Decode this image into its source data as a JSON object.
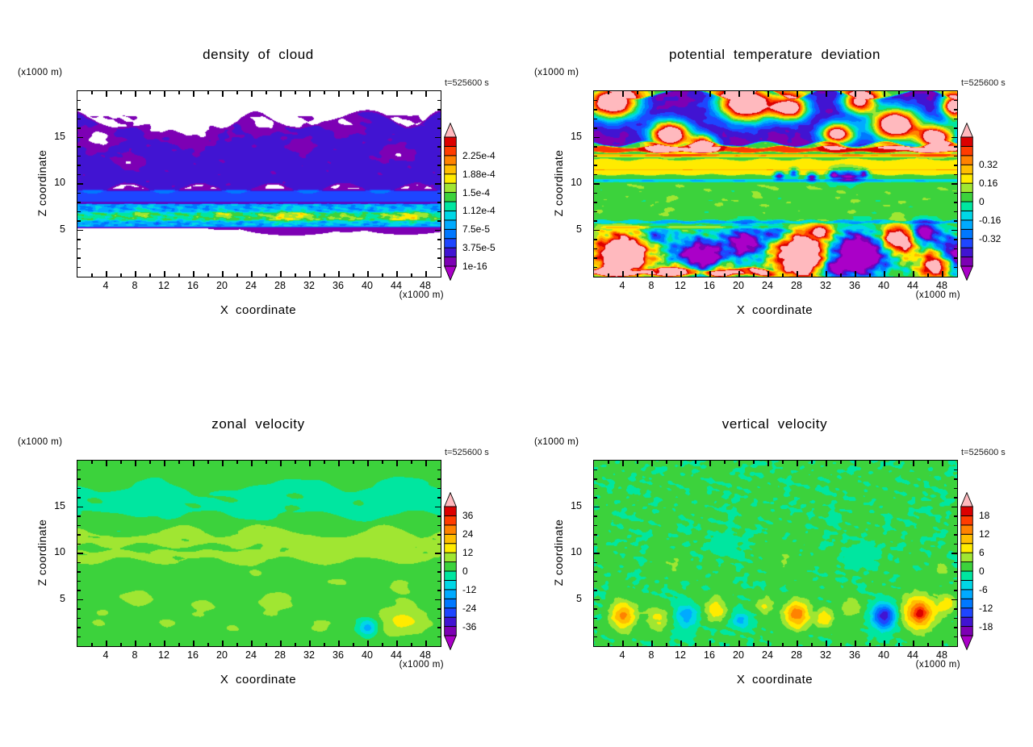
{
  "page": {
    "background": "#ffffff"
  },
  "palette": {
    "colors": [
      "#7d00b4",
      "#4114d2",
      "#1e46ff",
      "#0078ff",
      "#00aaff",
      "#00d7e6",
      "#00e6a0",
      "#3cd23c",
      "#a0e632",
      "#ffeb00",
      "#ffbe00",
      "#ff8200",
      "#ff3c00",
      "#dc0000"
    ],
    "under": "#aa00c8",
    "over": "#ffb9be"
  },
  "chart_data": [
    {
      "type": "filled-contour",
      "title": "density of cloud",
      "time_label": "t=525600 s",
      "x_axis": {
        "label": "X coordinate",
        "unit": "(x1000 m)",
        "range": [
          0,
          50
        ],
        "major_ticks": [
          4,
          8,
          12,
          16,
          20,
          24,
          28,
          32,
          36,
          40,
          44,
          48
        ],
        "minor_step": 2
      },
      "y_axis": {
        "label": "Z coordinate",
        "unit": "(x1000 m)",
        "range": [
          0,
          20
        ],
        "major_ticks": [
          5,
          10,
          15
        ],
        "minor_step": 1
      },
      "colorbar": {
        "tick_labels": [
          "2.25e-4",
          "1.88e-4",
          "1.5e-4",
          "1.12e-4",
          "7.5e-5",
          "3.75e-5",
          "1e-16"
        ],
        "fracs": [
          0.857,
          0.714,
          0.571,
          0.429,
          0.286,
          0.143,
          0.0
        ],
        "levels": [
          1e-16,
          1.875e-05,
          3.75e-05,
          5.625e-05,
          7.5e-05,
          9.375e-05,
          0.0001125,
          0.00013125,
          0.00015,
          0.00016875,
          0.0001875,
          0.00020625,
          0.000225,
          0.00024375,
          0.0002625
        ],
        "under": "none"
      },
      "field": {
        "base": 0,
        "bands": [
          {
            "z0": 9.35,
            "z1": 17.1,
            "v": 2.5e-05,
            "soft": 0.35,
            "wob": 0.9,
            "wf": 0.5,
            "ph": 1.3
          },
          {
            "z0": 7.9,
            "z1": 9.45,
            "v": 4.8e-05,
            "soft": 0.3
          },
          {
            "z0": 5.25,
            "z1": 7.95,
            "v": 8.2e-05,
            "soft": 0.18
          },
          {
            "z0": 5.9,
            "z1": 7.1,
            "v": 4.2e-05,
            "soft": 0.3
          }
        ],
        "blobs": [
          [
            29.5,
            6.5,
            2.6,
            0.55,
            5.2e-05
          ],
          [
            45.2,
            6.4,
            2.3,
            0.5,
            5.2e-05
          ],
          [
            20.5,
            6.7,
            1.6,
            0.45,
            3.6e-05
          ],
          [
            9,
            6.9,
            1.3,
            0.4,
            3.2e-05
          ],
          [
            37,
            6.3,
            1.4,
            0.4,
            3e-05
          ],
          [
            16,
            16.9,
            2.6,
            1.6,
            -4.2e-05
          ],
          [
            3,
            14.9,
            1.6,
            0.9,
            -3.2e-05
          ],
          [
            25.5,
            16.7,
            2.1,
            0.9,
            -3e-05
          ],
          [
            7.5,
            12.4,
            1.3,
            0.5,
            -2.6e-05
          ],
          [
            36.5,
            16.6,
            1.6,
            0.8,
            -2.8e-05
          ],
          [
            44,
            13.3,
            1.5,
            0.6,
            -2.6e-05
          ],
          [
            31,
            14.1,
            1.2,
            0.5,
            -2.4e-05
          ],
          [
            11,
            16.4,
            1.5,
            0.8,
            -3e-05
          ]
        ],
        "noise": [
          {
            "amp": 8e-06,
            "sx": 1.3,
            "sz": 0.8,
            "z0": 9.4,
            "z1": 17.4,
            "seed": 3
          },
          {
            "amp": 3e-05,
            "sx": 1.0,
            "sz": 0.38,
            "z0": 5.3,
            "z1": 8.0,
            "seed": 7
          }
        ]
      }
    },
    {
      "type": "filled-contour",
      "title": "potential temperature deviation",
      "time_label": "t=525600 s",
      "x_axis": {
        "label": "X coordinate",
        "unit": "(x1000 m)",
        "range": [
          0,
          50
        ],
        "major_ticks": [
          4,
          8,
          12,
          16,
          20,
          24,
          28,
          32,
          36,
          40,
          44,
          48
        ],
        "minor_step": 2
      },
      "y_axis": {
        "label": "Z coordinate",
        "unit": "(x1000 m)",
        "range": [
          0,
          20
        ],
        "major_ticks": [
          5,
          10,
          15
        ],
        "minor_step": 1
      },
      "colorbar": {
        "tick_labels": [
          "0.32",
          "0.16",
          "0",
          "-0.16",
          "-0.32"
        ],
        "fracs": [
          0.786,
          0.643,
          0.5,
          0.357,
          0.214
        ],
        "levels": [
          -0.56,
          -0.48,
          -0.4,
          -0.32,
          -0.24,
          -0.16,
          -0.08,
          0,
          0.08,
          0.16,
          0.24,
          0.32,
          0.4,
          0.48,
          0.56
        ]
      },
      "field": {
        "base": 0.03,
        "bands": [
          {
            "z0": 14.15,
            "z1": 19.8,
            "v": -0.53,
            "soft": 0.25,
            "wob": 0.5,
            "wf": 0.6,
            "ph": 0.4
          },
          {
            "z0": 13.35,
            "z1": 14.05,
            "v": 0.42,
            "soft": 0.14,
            "wob": 0.15,
            "wf": 0.8
          },
          {
            "z0": 12.85,
            "z1": 13.28,
            "v": 0.28,
            "soft": 0.12
          },
          {
            "z0": 10.9,
            "z1": 12.7,
            "v": 0.16,
            "soft": 0.15,
            "wob": 0.12,
            "wf": 0.9
          },
          {
            "z0": 11.42,
            "z1": 11.62,
            "v": 0.12,
            "soft": 0.08
          },
          {
            "z0": 10.15,
            "z1": 10.58,
            "v": -0.18,
            "soft": 0.12
          },
          {
            "z0": 6.4,
            "z1": 10.1,
            "v": 0.02,
            "soft": 0.3
          },
          {
            "z0": 5.68,
            "z1": 6.12,
            "v": -0.2,
            "soft": 0.12,
            "wob": 0.1,
            "wf": 1.3
          },
          {
            "z0": 5.14,
            "z1": 5.5,
            "v": 0.13,
            "soft": 0.1,
            "xm": [
              0,
              27
            ]
          },
          {
            "z0": 0,
            "z1": 0.95,
            "v": 0.5,
            "soft": 0.3,
            "xm": [
              -2,
              26
            ],
            "wob": 0.2,
            "wf": 0.7
          }
        ],
        "blobs": [
          [
            2.5,
            18.8,
            2.4,
            1.2,
            1.5
          ],
          [
            10.5,
            15.3,
            1.9,
            1.0,
            1.5
          ],
          [
            15,
            14.4,
            1.2,
            0.6,
            1.1
          ],
          [
            21,
            18.7,
            2.6,
            1.3,
            1.6
          ],
          [
            27,
            18.2,
            1.7,
            0.9,
            1.3
          ],
          [
            33.5,
            15.4,
            1.6,
            0.8,
            1.3
          ],
          [
            36.5,
            18.9,
            1.6,
            0.9,
            1.2
          ],
          [
            41.5,
            16.4,
            2.3,
            1.2,
            1.5
          ],
          [
            47,
            15.0,
            1.7,
            0.9,
            1.4
          ],
          [
            49.5,
            18.5,
            1.2,
            0.8,
            1.2
          ],
          [
            49.7,
            17.2,
            0.9,
            1.1,
            0.38
          ],
          [
            25.5,
            10.9,
            0.45,
            0.3,
            -0.6
          ],
          [
            27.5,
            11.2,
            0.4,
            0.28,
            -0.55
          ],
          [
            30,
            10.75,
            0.45,
            0.3,
            -0.6
          ],
          [
            33,
            11.05,
            0.4,
            0.28,
            -0.55
          ],
          [
            35,
            10.9,
            1.3,
            0.5,
            -0.65
          ],
          [
            37.2,
            11.15,
            0.4,
            0.28,
            -0.55
          ],
          [
            4,
            2.4,
            2.3,
            1.4,
            1.15
          ],
          [
            28.5,
            2.3,
            2.1,
            1.5,
            1.25
          ],
          [
            42,
            4.0,
            1.7,
            1.0,
            0.95
          ],
          [
            31.2,
            4.9,
            1.1,
            0.55,
            0.6
          ],
          [
            47.6,
            1.3,
            1.7,
            1.0,
            0.95
          ],
          [
            12,
            0.8,
            1.5,
            0.7,
            0.6
          ],
          [
            17.5,
            0.7,
            1.3,
            0.6,
            0.55
          ],
          [
            14.5,
            2.1,
            2.3,
            1.3,
            -0.95
          ],
          [
            20.8,
            3.7,
            1.7,
            1.1,
            -0.8
          ],
          [
            36.5,
            2.4,
            2.5,
            1.5,
            -1.05
          ],
          [
            45.3,
            4.7,
            1.3,
            0.8,
            -0.85
          ],
          [
            49.6,
            2.2,
            1.6,
            1.3,
            -0.95
          ],
          [
            25.2,
            4.7,
            1.0,
            0.55,
            -0.55
          ],
          [
            8.7,
            4.4,
            1.1,
            0.6,
            -0.5
          ],
          [
            33.2,
            0.8,
            1.2,
            0.6,
            -0.6
          ]
        ],
        "noise": [
          {
            "amp": 0.045,
            "sx": 1.6,
            "sz": 0.7,
            "z0": 6.3,
            "z1": 10.2,
            "seed": 5
          },
          {
            "amp": 0.2,
            "sx": 1.1,
            "sz": 0.8,
            "z0": 0,
            "z1": 5.2,
            "seed": 9
          },
          {
            "amp": 0.05,
            "sx": 1.2,
            "sz": 0.8,
            "z0": 14.2,
            "z1": 19.8,
            "seed": 13
          },
          {
            "amp": 0.03,
            "sx": 2.2,
            "sz": 1.0,
            "seed": 2
          }
        ]
      }
    },
    {
      "type": "filled-contour",
      "title": "zonal velocity",
      "time_label": "t=525600 s",
      "x_axis": {
        "label": "X coordinate",
        "unit": "(x1000 m)",
        "range": [
          0,
          50
        ],
        "major_ticks": [
          4,
          8,
          12,
          16,
          20,
          24,
          28,
          32,
          36,
          40,
          44,
          48
        ],
        "minor_step": 2
      },
      "y_axis": {
        "label": "Z coordinate",
        "unit": "(x1000 m)",
        "range": [
          0,
          20
        ],
        "major_ticks": [
          5,
          10,
          15
        ],
        "minor_step": 1
      },
      "colorbar": {
        "tick_labels": [
          "36",
          "24",
          "12",
          "0",
          "-12",
          "-24",
          "-36"
        ],
        "fracs": [
          0.929,
          0.786,
          0.643,
          0.5,
          0.357,
          0.214,
          0.071
        ],
        "levels": [
          -42,
          -36,
          -30,
          -24,
          -18,
          -12,
          -6,
          0,
          6,
          12,
          18,
          24,
          30,
          36,
          42
        ]
      },
      "field": {
        "base": 2,
        "bands": [
          {
            "z0": 8.8,
            "z1": 12.8,
            "v": 5.5,
            "soft": 0.6,
            "wob": 0.7,
            "wf": 0.45,
            "ph": 2
          },
          {
            "z0": 10.15,
            "z1": 10.95,
            "v": -4,
            "soft": 0.3,
            "xm": [
              -2,
              26
            ],
            "wob": 0.3,
            "wf": 0.8
          },
          {
            "z0": 13.6,
            "z1": 17.8,
            "v": -2.8,
            "soft": 0.7,
            "wob": 0.8,
            "wf": 0.35,
            "ph": 4
          }
        ],
        "blobs": [
          [
            3,
            3,
            1.7,
            1.3,
            4.5
          ],
          [
            8,
            5.3,
            2.4,
            1.0,
            5.5
          ],
          [
            12.5,
            2.4,
            1.5,
            0.7,
            4
          ],
          [
            17,
            4.2,
            2.2,
            1.0,
            5.5
          ],
          [
            21.5,
            2.1,
            1.7,
            0.7,
            4
          ],
          [
            27.5,
            4.6,
            2.6,
            1.1,
            6
          ],
          [
            33,
            2.1,
            2.0,
            0.8,
            4.5
          ],
          [
            36,
            6.8,
            2.0,
            0.9,
            5
          ],
          [
            44.8,
            2.7,
            3.0,
            1.5,
            8.5
          ],
          [
            45,
            2.6,
            1.3,
            0.6,
            4
          ],
          [
            44.5,
            6.4,
            1.5,
            0.7,
            5
          ],
          [
            40,
            2.0,
            0.95,
            0.65,
            -19
          ],
          [
            24.5,
            7.7,
            1.6,
            0.8,
            4
          ]
        ],
        "noise": [
          {
            "amp": 1.5,
            "sx": 3.2,
            "sz": 1.1,
            "seed": 4
          },
          {
            "amp": 1.2,
            "sx": 1.4,
            "sz": 0.5,
            "z0": 8.5,
            "z1": 13,
            "seed": 8
          }
        ]
      }
    },
    {
      "type": "filled-contour",
      "title": "vertical velocity",
      "time_label": "t=525600 s",
      "x_axis": {
        "label": "X coordinate",
        "unit": "(x1000 m)",
        "range": [
          0,
          50
        ],
        "major_ticks": [
          4,
          8,
          12,
          16,
          20,
          24,
          28,
          32,
          36,
          40,
          44,
          48
        ],
        "minor_step": 2
      },
      "y_axis": {
        "label": "Z coordinate",
        "unit": "(x1000 m)",
        "range": [
          0,
          20
        ],
        "major_ticks": [
          5,
          10,
          15
        ],
        "minor_step": 1
      },
      "colorbar": {
        "tick_labels": [
          "18",
          "12",
          "6",
          "0",
          "-6",
          "-12",
          "-18"
        ],
        "fracs": [
          0.929,
          0.786,
          0.643,
          0.5,
          0.357,
          0.214,
          0.071
        ],
        "levels": [
          -21,
          -18,
          -15,
          -12,
          -9,
          -6,
          -3,
          0,
          3,
          6,
          9,
          12,
          15,
          18,
          21
        ]
      },
      "field": {
        "base": 0.4,
        "bands": [],
        "blobs": [
          [
            4,
            3.3,
            1.15,
            1.1,
            13
          ],
          [
            8.8,
            3.0,
            1.0,
            0.85,
            7
          ],
          [
            12.8,
            3.3,
            0.95,
            0.95,
            -9
          ],
          [
            16.8,
            4.0,
            1.1,
            0.9,
            8
          ],
          [
            20.3,
            2.8,
            0.85,
            0.7,
            -7.5
          ],
          [
            23.5,
            4.3,
            0.95,
            0.7,
            5
          ],
          [
            28,
            3.4,
            1.25,
            1.05,
            14
          ],
          [
            31.8,
            3.0,
            0.9,
            0.8,
            8
          ],
          [
            35.5,
            4.2,
            0.9,
            0.7,
            5.5
          ],
          [
            40,
            3.2,
            1.15,
            0.95,
            -17
          ],
          [
            44.8,
            3.6,
            1.55,
            1.25,
            16
          ],
          [
            44.8,
            3.6,
            0.55,
            0.45,
            3.5
          ],
          [
            48.6,
            4.6,
            0.95,
            0.75,
            6.5
          ],
          [
            48,
            8.2,
            0.8,
            0.6,
            4
          ],
          [
            10.5,
            8.8,
            1.4,
            0.9,
            2.6
          ],
          [
            26,
            9.0,
            1.5,
            0.9,
            2.4
          ],
          [
            37,
            10,
            1.3,
            0.9,
            -2.6
          ],
          [
            18,
            11,
            1.6,
            1,
            -2.2
          ]
        ],
        "noise": [
          {
            "amp": 1.15,
            "sx": 0.95,
            "sz": 0.7,
            "seed": 6
          },
          {
            "amp": 0.8,
            "sx": 2.5,
            "sz": 1.5,
            "seed": 10
          }
        ]
      }
    }
  ]
}
